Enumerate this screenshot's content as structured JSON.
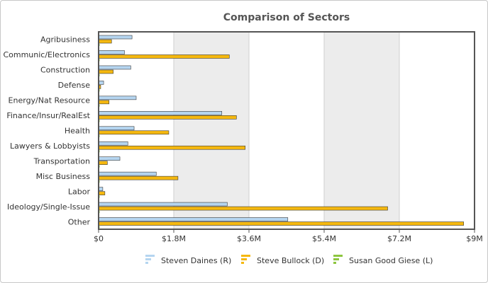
{
  "chart_data": {
    "type": "bar",
    "orientation": "horizontal",
    "title": "Comparison of Sectors",
    "xlabel": "",
    "ylabel": "",
    "categories": [
      "Agribusiness",
      "Communic/Electronics",
      "Construction",
      "Defense",
      "Energy/Nat Resource",
      "Finance/Insur/RealEst",
      "Health",
      "Lawyers & Lobbyists",
      "Transportation",
      "Misc Business",
      "Labor",
      "Ideology/Single-Issue",
      "Other"
    ],
    "series": [
      {
        "name": "Steven Daines (R)",
        "color": "#b5d5f0",
        "values": [
          800000,
          620000,
          770000,
          120000,
          900000,
          2950000,
          850000,
          700000,
          510000,
          1380000,
          100000,
          3080000,
          4530000
        ]
      },
      {
        "name": "Steve Bullock (D)",
        "color": "#f5b80f",
        "values": [
          310000,
          3130000,
          350000,
          50000,
          250000,
          3300000,
          1680000,
          3510000,
          210000,
          1900000,
          150000,
          6920000,
          8740000
        ]
      },
      {
        "name": "Susan Good Giese (L)",
        "color": "#8dc63f",
        "values": [
          20000,
          20000,
          20000,
          20000,
          20000,
          20000,
          20000,
          20000,
          20000,
          20000,
          20000,
          20000,
          20000
        ]
      }
    ],
    "xlim": [
      0,
      9000000
    ],
    "x_ticks": [
      0,
      1800000,
      3600000,
      5400000,
      7200000,
      9000000
    ],
    "x_tick_labels": [
      "$0",
      "$1.8M",
      "$3.6M",
      "$5.4M",
      "$7.2M",
      "$9M"
    ],
    "grid": true,
    "alternating_bands": true,
    "legend_position": "bottom"
  }
}
